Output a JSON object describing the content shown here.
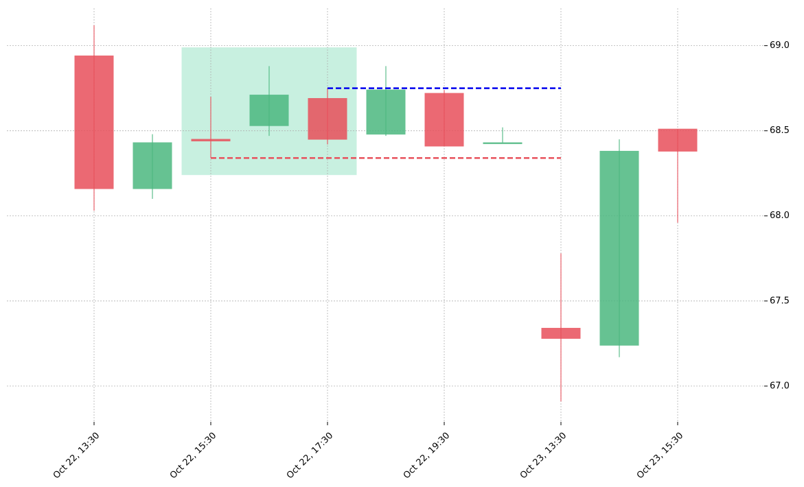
{
  "chart_data": {
    "type": "candlestick",
    "categories": [
      "Oct 22, 13:30",
      null,
      "Oct 22, 15:30",
      null,
      "Oct 22, 17:30",
      null,
      "Oct 22, 19:30",
      null,
      "Oct 23, 13:30",
      null,
      "Oct 23, 15:30"
    ],
    "open": [
      68.94,
      68.16,
      68.45,
      68.53,
      68.69,
      68.48,
      68.72,
      68.43,
      67.34,
      67.24,
      68.51
    ],
    "high": [
      69.12,
      68.48,
      68.7,
      68.88,
      68.75,
      68.88,
      68.74,
      68.52,
      67.78,
      68.45,
      68.51
    ],
    "low": [
      68.03,
      68.1,
      68.34,
      68.47,
      68.42,
      68.47,
      68.41,
      68.43,
      66.91,
      67.17,
      67.96
    ],
    "close": [
      68.16,
      68.43,
      68.44,
      68.71,
      68.45,
      68.74,
      68.41,
      68.43,
      67.28,
      68.38,
      68.38
    ],
    "up_color": "#4cb880",
    "down_color": "#e8505b",
    "ylim": [
      66.79,
      69.22
    ],
    "yticks": [
      {
        "value": 67,
        "label": "67.0"
      },
      67.5,
      {
        "value": 68,
        "label": "68.0"
      },
      68.5,
      {
        "value": 69,
        "label": "69.0"
      }
    ],
    "grid": true,
    "zone": {
      "x": [
        2,
        4
      ],
      "y": [
        68.24,
        68.99
      ],
      "color": "#c8f0e0"
    },
    "levels": [
      {
        "value": 68.75,
        "x": [
          4,
          8
        ],
        "color": "#0000ee"
      },
      {
        "value": 68.34,
        "x": [
          2,
          8
        ],
        "color": "#e8505b"
      }
    ]
  }
}
